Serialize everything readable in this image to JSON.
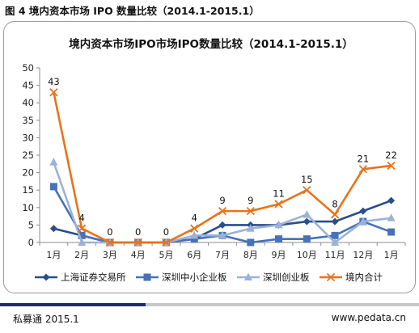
{
  "caption": "图 4  境内资本市场 IPO 数量比较（2014.1-2015.1）",
  "footer": {
    "source": "私募通  2015.1",
    "website": "www.pedata.cn"
  },
  "colors": {
    "sse": "#2a4d8c",
    "sme": "#4672b8",
    "gem": "#9ab2d6",
    "total": "#e8731a"
  },
  "chart_data": {
    "type": "line",
    "title": "境内资本市场IPO市场IPO数量比较（2014.1-2015.1）",
    "categories": [
      "1月",
      "2月",
      "3月",
      "4月",
      "5月",
      "6月",
      "7月",
      "8月",
      "9月",
      "10月",
      "11月",
      "12月",
      "1月"
    ],
    "ylim": [
      0,
      50
    ],
    "yticks": [
      0,
      5,
      10,
      15,
      20,
      25,
      30,
      35,
      40,
      45,
      50
    ],
    "grid": false,
    "legend_position": "bottom",
    "series": [
      {
        "name": "上海证券交易所",
        "marker": "diamond",
        "color": "#2a4d8c",
        "values": [
          4,
          2,
          0,
          0,
          0,
          1,
          5,
          5,
          5,
          6,
          6,
          9,
          12
        ]
      },
      {
        "name": "深圳中小企业板",
        "marker": "square",
        "color": "#4672b8",
        "values": [
          16,
          2,
          0,
          0,
          0,
          1,
          2,
          0,
          1,
          1,
          2,
          6,
          3
        ]
      },
      {
        "name": "深圳创业板",
        "marker": "triangle",
        "color": "#9ab2d6",
        "values": [
          23,
          0,
          0,
          0,
          0,
          2,
          2,
          4,
          5,
          8,
          0,
          6,
          7
        ]
      },
      {
        "name": "境内合计",
        "marker": "x",
        "color": "#e8731a",
        "values": [
          43,
          4,
          0,
          0,
          0,
          4,
          9,
          9,
          11,
          15,
          8,
          21,
          22
        ],
        "data_labels": [
          "43",
          "4",
          "0",
          "0",
          "0",
          "4",
          "9",
          "9",
          "11",
          "15",
          "8",
          "21",
          "22"
        ]
      }
    ]
  }
}
